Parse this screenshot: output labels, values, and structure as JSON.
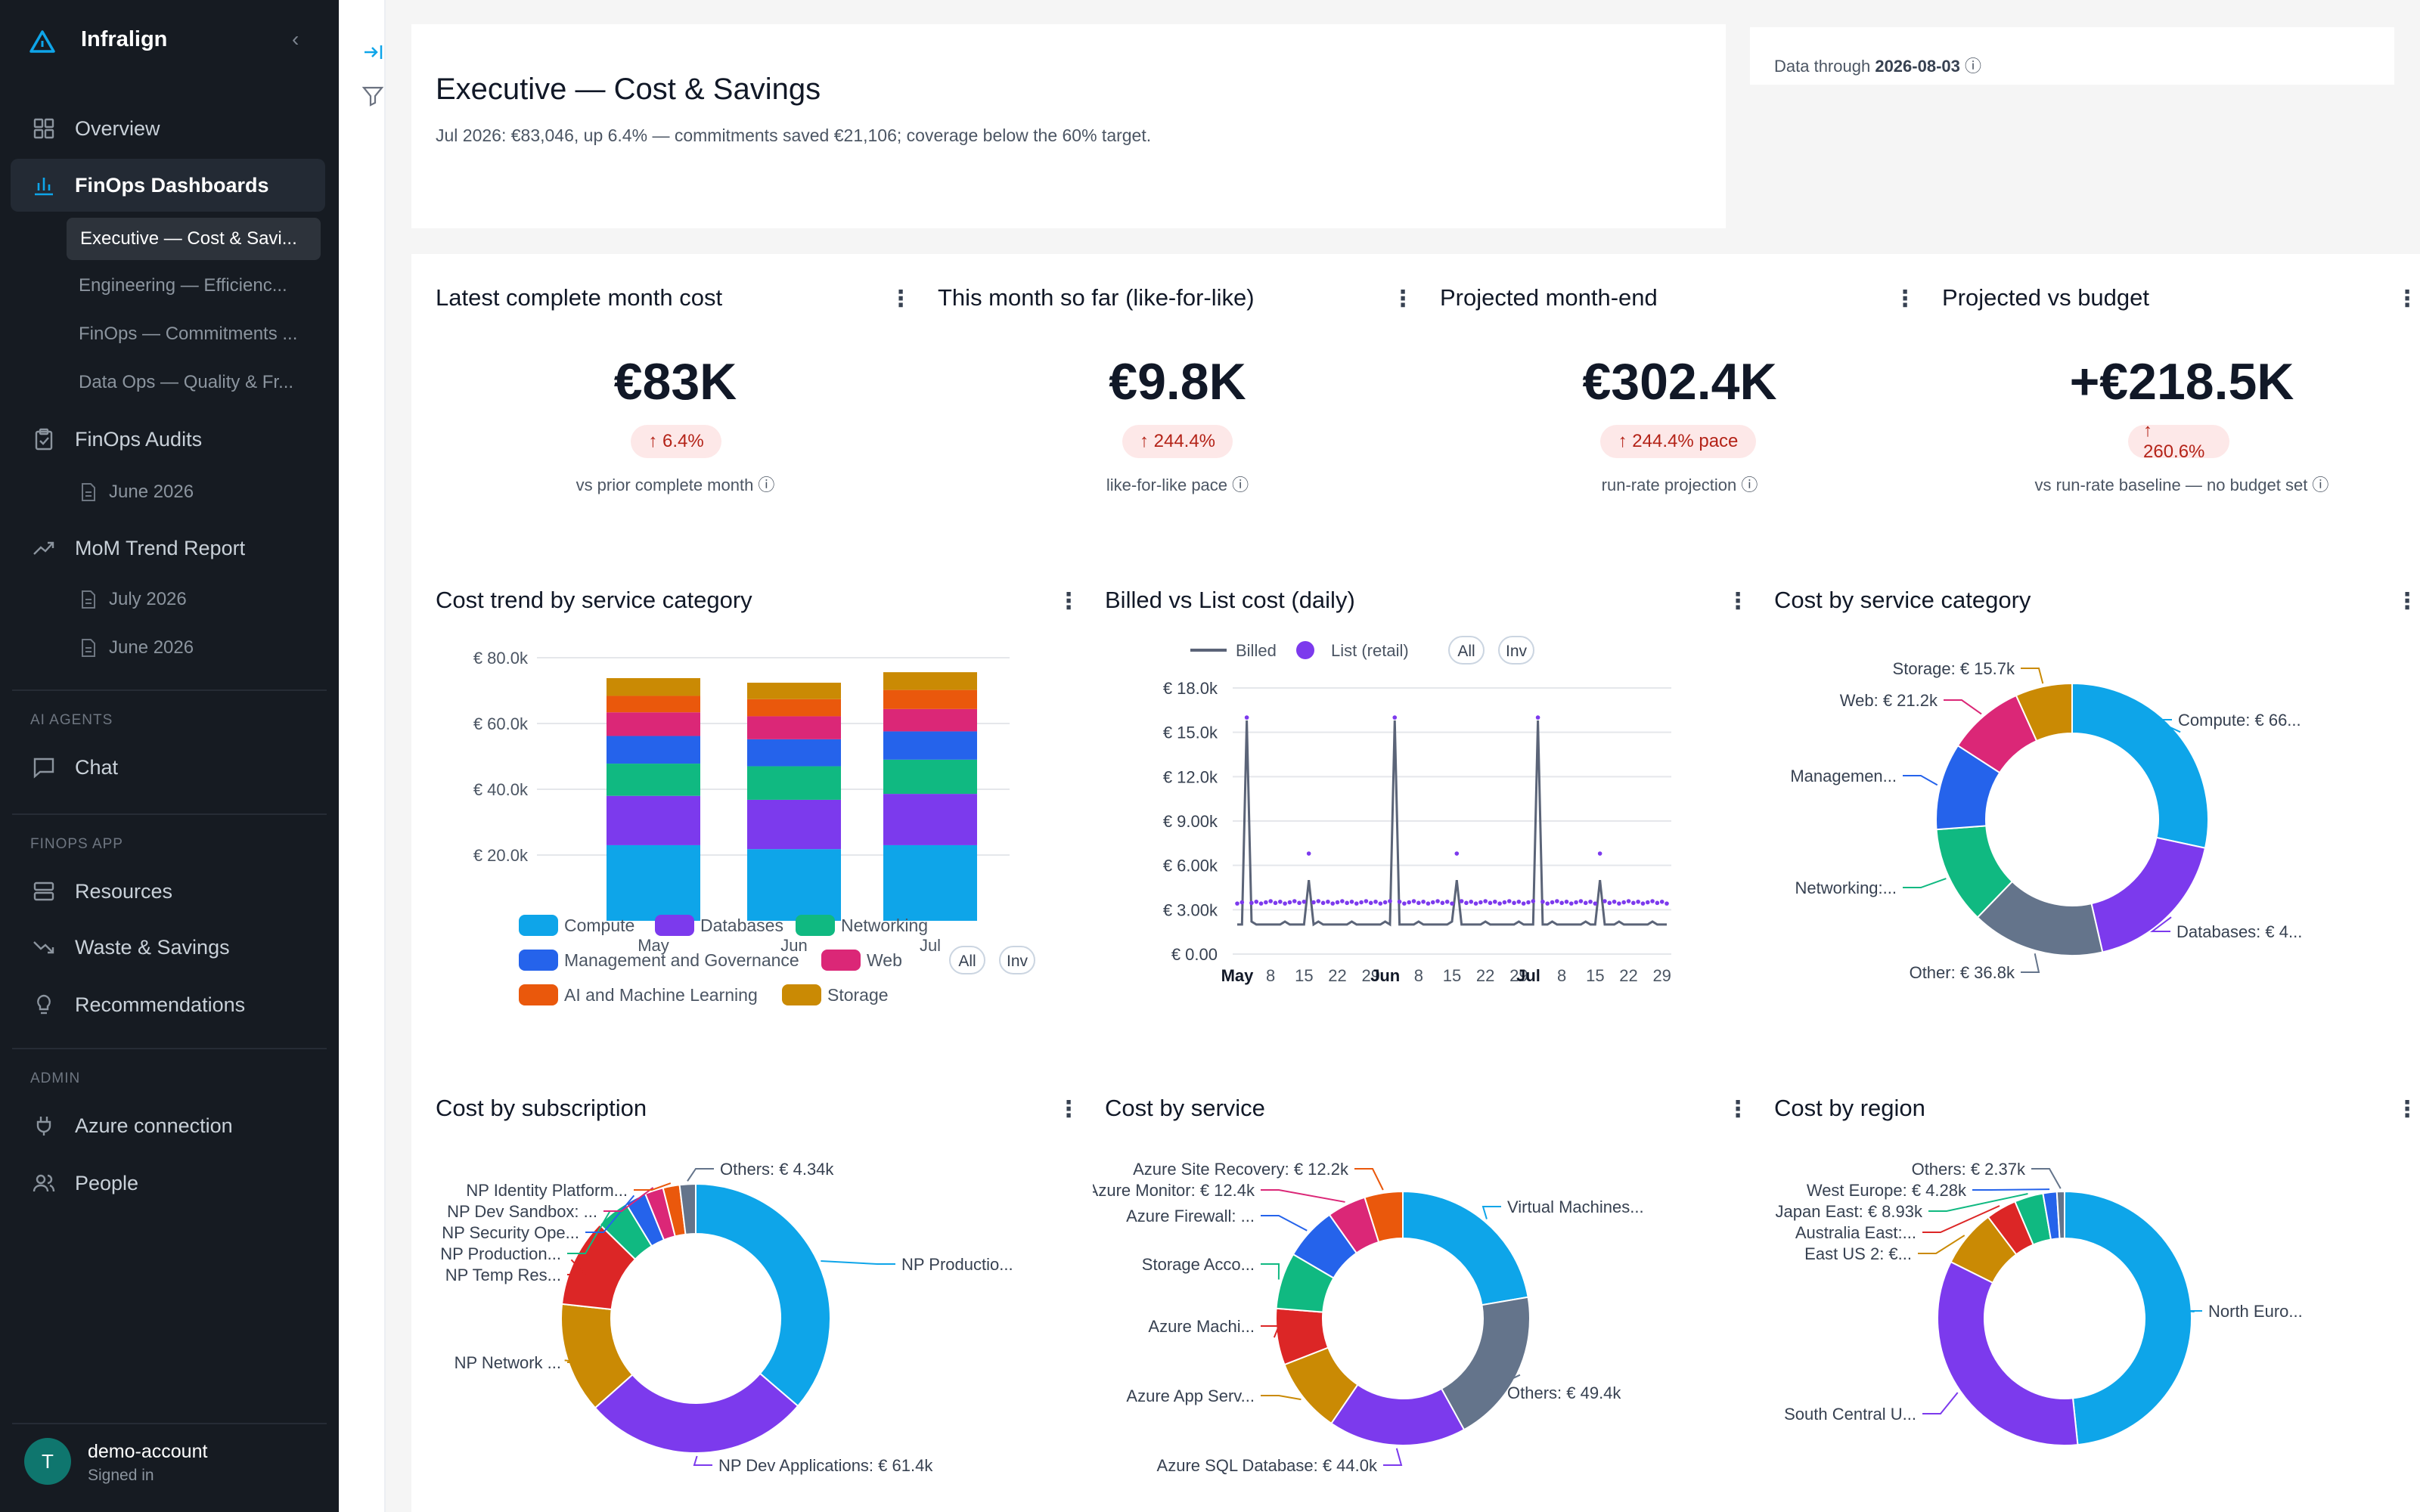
{
  "app": {
    "name": "Infralign",
    "collapse_icon": "chevron-left-icon"
  },
  "nav": {
    "overview": "Overview",
    "finops_dashboards": "FinOps Dashboards",
    "dash_items": [
      "Executive — Cost & Savi...",
      "Engineering — Efficienc...",
      "FinOps — Commitments ...",
      "Data Ops — Quality & Fr..."
    ],
    "finops_audits": "FinOps Audits",
    "audit_items": [
      "June 2026"
    ],
    "mom": "MoM Trend Report",
    "mom_items": [
      "July 2026",
      "June 2026"
    ],
    "sec_ai": "AI AGENTS",
    "chat": "Chat",
    "sec_app": "FINOPS APP",
    "resources": "Resources",
    "waste": "Waste & Savings",
    "recs": "Recommendations",
    "sec_admin": "ADMIN",
    "azure": "Azure connection",
    "people": "People"
  },
  "user": {
    "initial": "T",
    "name": "demo-account",
    "status": "Signed in"
  },
  "header": {
    "title": "Executive — Cost & Savings",
    "summary": "Jul 2026: €83,046, up 6.4% — commitments saved €21,106; coverage below the 60% target.",
    "through_label": "Data through",
    "through_date": "2026-08-03"
  },
  "kpis": [
    {
      "title": "Latest complete month cost",
      "value": "€83K",
      "badge": "↑ 6.4%",
      "caption": "vs prior complete month ⓘ"
    },
    {
      "title": "This month so far (like-for-like)",
      "value": "€9.8K",
      "badge": "↑ 244.4%",
      "caption": "like-for-like pace ⓘ"
    },
    {
      "title": "Projected month-end",
      "value": "€302.4K",
      "badge": "↑ 244.4% pace",
      "caption": "run-rate projection ⓘ"
    },
    {
      "title": "Projected vs budget",
      "value": "+€218.5K",
      "badge": "↑ 260.6%",
      "caption": "vs run-rate baseline — no budget set ⓘ"
    }
  ],
  "panels": {
    "trend": "Cost trend by service category",
    "billed": "Billed vs List cost (daily)",
    "category": "Cost by service category",
    "subscription": "Cost by subscription",
    "service": "Cost by service",
    "region": "Cost by region",
    "menu_glyph": "⋮"
  },
  "colors": {
    "Compute": "#0ea5e9",
    "Databases": "#7c3aed",
    "Networking": "#10b981",
    "Management and Governance": "#2563eb",
    "Web": "#db2777",
    "AI and Machine Learning": "#ea580c",
    "Storage": "#ca8a04",
    "Other": "#64748b",
    "Other2": "#dc2626",
    "Billed": "#5b6478",
    "List": "#7c3aed",
    "accent": "#0ea5e9"
  },
  "chart_data": [
    {
      "type": "bar",
      "title": "Cost trend by service category",
      "categories": [
        "May",
        "Jun",
        "Jul"
      ],
      "ylim": [
        0,
        80000
      ],
      "yticks": [
        "€ 20.0k",
        "€ 40.0k",
        "€ 60.0k",
        "€ 80.0k"
      ],
      "ytick_values": [
        20000,
        40000,
        60000,
        80000
      ],
      "x_extra_label": "0",
      "series": [
        {
          "name": "Compute",
          "values": [
            23000,
            21800,
            23000
          ]
        },
        {
          "name": "Databases",
          "values": [
            15000,
            15000,
            15600
          ]
        },
        {
          "name": "Networking",
          "values": [
            9800,
            10200,
            10400
          ]
        },
        {
          "name": "Management and Governance",
          "values": [
            8400,
            8200,
            8600
          ]
        },
        {
          "name": "Web",
          "values": [
            7200,
            7000,
            6800
          ]
        },
        {
          "name": "AI and Machine Learning",
          "values": [
            5000,
            5200,
            5800
          ]
        },
        {
          "name": "Storage",
          "values": [
            5400,
            5000,
            5400
          ]
        }
      ],
      "legend_buttons": [
        "All",
        "Inv"
      ]
    },
    {
      "type": "line",
      "title": "Billed vs List cost (daily)",
      "ylim": [
        0,
        18000
      ],
      "yticks": [
        "€ 0.00",
        "€ 3.00k",
        "€ 6.00k",
        "€ 9.00k",
        "€ 12.0k",
        "€ 15.0k",
        "€ 18.0k"
      ],
      "ytick_values": [
        0,
        3000,
        6000,
        9000,
        12000,
        15000,
        18000
      ],
      "xticks": [
        "May",
        "8",
        "15",
        "22",
        "29",
        "Jun",
        "8",
        "15",
        "22",
        "29",
        "Jul",
        "8",
        "15",
        "22",
        "29"
      ],
      "series": [
        {
          "name": "Billed"
        },
        {
          "name": "List (retail)"
        }
      ],
      "legend_buttons": [
        "All",
        "Inv"
      ],
      "description_values": {
        "baseline_billed": 2000,
        "baseline_list": 3500,
        "spikes": [
          {
            "day": 2,
            "billed": 15800,
            "list": 16000
          },
          {
            "day": 15,
            "billed": 5000,
            "list": 6800
          },
          {
            "day": 33,
            "billed": 15800,
            "list": 16000
          },
          {
            "day": 46,
            "billed": 5000,
            "list": 6800
          },
          {
            "day": 63,
            "billed": 15800,
            "list": 16000
          },
          {
            "day": 76,
            "billed": 5000,
            "list": 6800
          }
        ],
        "days": 91
      }
    },
    {
      "type": "pie",
      "title": "Cost by service category",
      "labels": [
        "Compute: € 66...",
        "Databases: € 4...",
        "Other: € 36.8k",
        "Networking:...",
        "Managemen...",
        "Web: € 21.2k",
        "Storage: € 15.7k"
      ],
      "values": [
        66000,
        42000,
        36800,
        27000,
        24000,
        21200,
        15700
      ],
      "color_keys": [
        "Compute",
        "Databases",
        "Other",
        "Networking",
        "Management and Governance",
        "Web",
        "Storage"
      ]
    },
    {
      "type": "pie",
      "title": "Cost by subscription",
      "labels": [
        "NP Productio...",
        "NP Dev Applications: € 61.4k",
        "NP Network ...",
        "NP Temp Res...",
        "NP Production...",
        "NP Security Ope...",
        "NP Dev Sandbox: ...",
        "NP Identity Platform...",
        "Others: € 4.34k"
      ],
      "values": [
        82000,
        61400,
        30000,
        24000,
        9000,
        5800,
        5000,
        4500,
        4340
      ],
      "color_keys": [
        "Compute",
        "Databases",
        "Storage",
        "Other2",
        "Networking",
        "Management and Governance",
        "Web",
        "AI and Machine Learning",
        "Other"
      ]
    },
    {
      "type": "pie",
      "title": "Cost by service",
      "labels": [
        "Virtual Machines...",
        "Others: € 49.4k",
        "Azure SQL Database: € 44.0k",
        "Azure App Serv...",
        "Azure Machi...",
        "Storage Acco...",
        "Azure Firewall: ...",
        "Azure Monitor: € 12.4k",
        "Azure Site Recovery: € 12.2k"
      ],
      "values": [
        56000,
        49400,
        44000,
        24000,
        18000,
        18000,
        17000,
        12400,
        12200
      ],
      "color_keys": [
        "Compute",
        "Other",
        "Databases",
        "Storage",
        "Other2",
        "Networking",
        "Management and Governance",
        "Web",
        "AI and Machine Learning"
      ]
    },
    {
      "type": "pie",
      "title": "Cost by region",
      "labels": [
        "North Euro...",
        "South Central U...",
        "East US 2: €...",
        "Australia East:...",
        "Japan East: € 8.93k",
        "West Europe: € 4.28k",
        "Others: € 2.37k"
      ],
      "values": [
        118000,
        83000,
        18000,
        9500,
        8930,
        4280,
        2370
      ],
      "color_keys": [
        "Compute",
        "Databases",
        "Storage",
        "Other2",
        "Networking",
        "Management and Governance",
        "Other"
      ]
    }
  ]
}
